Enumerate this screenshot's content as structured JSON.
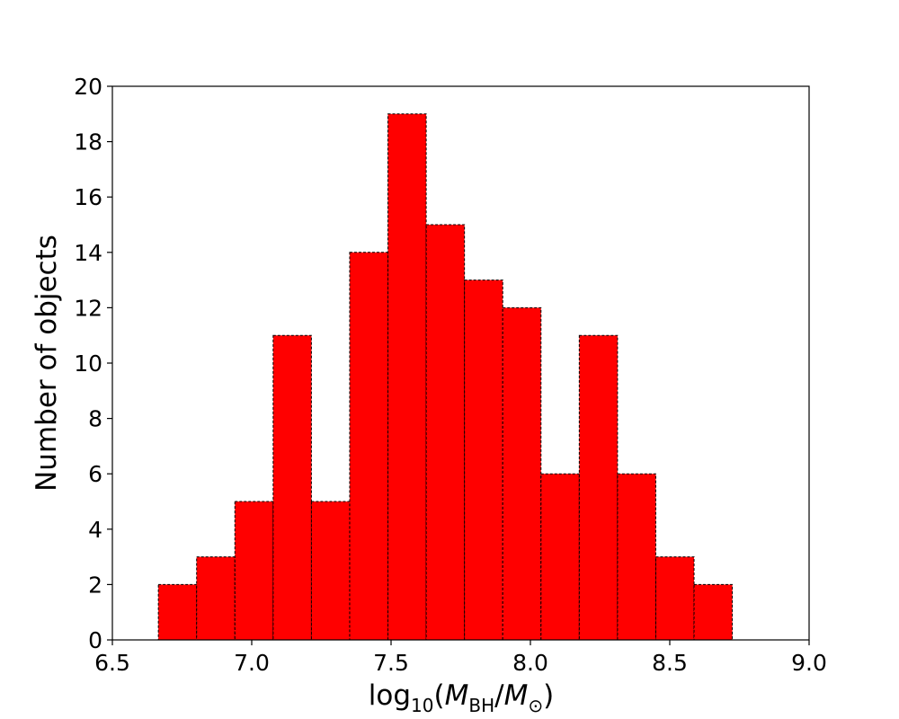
{
  "chart_data": {
    "type": "bar",
    "subtype": "histogram",
    "xlabel": {
      "prefix": "log",
      "log_base": "10",
      "open": "(",
      "numerator": "M",
      "numerator_sub": "BH",
      "slash": "/",
      "denominator": "M",
      "denominator_sub": "⊙",
      "close": ")"
    },
    "ylabel": "Number of objects",
    "xlim": [
      6.5,
      9.0
    ],
    "ylim": [
      0,
      20
    ],
    "xticks": [
      "6.5",
      "7.0",
      "7.5",
      "8.0",
      "8.5",
      "9.0"
    ],
    "yticks": [
      "0",
      "2",
      "4",
      "6",
      "8",
      "10",
      "12",
      "14",
      "16",
      "18",
      "20"
    ],
    "bin_edges": [
      6.665,
      6.8023,
      6.9396,
      7.0769,
      7.2142,
      7.3515,
      7.4888,
      7.6261,
      7.7634,
      7.9007,
      8.038,
      8.1753,
      8.3126,
      8.4499,
      8.5872,
      8.7245
    ],
    "counts": [
      2,
      3,
      5,
      11,
      5,
      14,
      19,
      15,
      13,
      12,
      6,
      11,
      6,
      3,
      2
    ],
    "bar_color": "#ff0000",
    "edge_color": "#000000",
    "edge_style": "dashed",
    "grid": false
  }
}
